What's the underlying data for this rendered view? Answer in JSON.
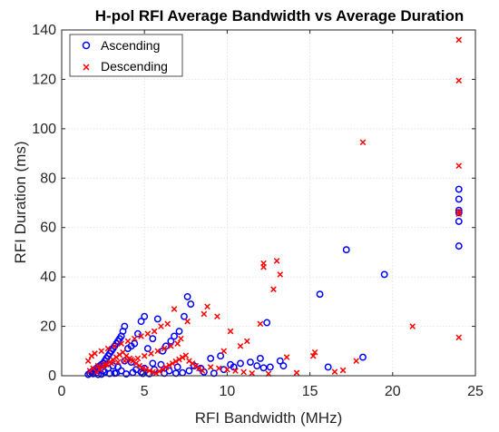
{
  "chart_data": {
    "type": "scatter",
    "title": "H-pol RFI Average Bandwidth vs Average Duration",
    "xlabel": "RFI Bandwidth (MHz)",
    "ylabel": "RFI Duration (ms)",
    "xlim": [
      0,
      25
    ],
    "ylim": [
      0,
      140
    ],
    "xticks": [
      0,
      5,
      10,
      15,
      20,
      25
    ],
    "yticks": [
      0,
      20,
      40,
      60,
      80,
      100,
      120,
      140
    ],
    "grid": true,
    "legend_position": "top-left",
    "series": [
      {
        "name": "Ascending",
        "marker": "o",
        "color": "#0000ff",
        "x": [
          24.0,
          24.0,
          24.0,
          24.0,
          24.0,
          24.0,
          17.2,
          19.5,
          15.6,
          12.4,
          18.2,
          16.1,
          13.2,
          13.4,
          12.6,
          12.2,
          12.0,
          11.4,
          10.8,
          10.2,
          9.6,
          9.0,
          7.6,
          7.8,
          7.4,
          7.1,
          6.8,
          6.6,
          6.3,
          6.1,
          5.8,
          5.5,
          5.2,
          5.0,
          4.8,
          4.6,
          4.4,
          4.2,
          4.0,
          3.8,
          3.7,
          3.6,
          3.5,
          3.4,
          3.3,
          3.2,
          3.1,
          3.0,
          2.9,
          2.8,
          2.7,
          2.6,
          2.5,
          2.4,
          2.3,
          2.2,
          2.1,
          2.0,
          1.9,
          1.8,
          1.7,
          1.6,
          3.8,
          4.2,
          5.5,
          6.0,
          2.5,
          2.8,
          3.1,
          3.4,
          4.5,
          5.0,
          6.5,
          7.0,
          8.0,
          8.4,
          9.8,
          10.4,
          11.8,
          3.2,
          2.6,
          2.2,
          3.6,
          4.8,
          5.6,
          6.9,
          7.7,
          8.6,
          9.2,
          1.9,
          2.1,
          2.4,
          2.9,
          3.3,
          3.9,
          4.3,
          4.9,
          5.3,
          6.2,
          7.3
        ],
        "y": [
          75.5,
          71.5,
          67,
          66,
          62.5,
          52.5,
          51,
          41,
          33,
          21.5,
          7.5,
          3.5,
          6,
          4,
          3.5,
          3.2,
          7,
          5.5,
          5,
          4.5,
          8,
          7,
          32,
          29,
          24,
          18,
          16,
          14,
          12,
          10,
          23,
          15,
          11,
          24,
          22,
          17,
          13,
          12,
          11,
          20,
          18,
          16,
          15,
          14,
          13,
          12,
          11,
          10,
          9,
          8,
          7,
          6,
          5,
          4.5,
          4,
          3.5,
          3,
          2.5,
          2,
          1.5,
          1,
          0.5,
          6,
          5.5,
          5,
          4.5,
          2,
          3,
          4,
          3.5,
          2.5,
          3,
          2,
          3.5,
          4,
          3,
          2.5,
          3.5,
          4,
          1,
          1.5,
          0.5,
          2,
          1.5,
          2.5,
          1,
          2,
          1.5,
          1,
          0.8,
          1.2,
          0.6,
          0.9,
          1.1,
          0.7,
          1.3,
          0.9,
          0.8,
          1.0,
          1.2
        ]
      },
      {
        "name": "Descending",
        "marker": "x",
        "color": "#ff0000",
        "x": [
          24.0,
          24.0,
          24.0,
          24.0,
          24.0,
          18.2,
          21.2,
          24.0,
          12.2,
          12.2,
          13.0,
          13.2,
          12.8,
          12.0,
          13.6,
          15.3,
          15.2,
          17.8,
          8.8,
          8.6,
          7.6,
          6.8,
          6.4,
          6.0,
          5.6,
          5.2,
          4.8,
          4.4,
          4.0,
          3.6,
          3.2,
          2.8,
          2.4,
          2.0,
          1.8,
          1.6,
          9.4,
          10.2,
          11.2,
          10.8,
          9.8,
          7.2,
          7.0,
          6.6,
          6.2,
          5.8,
          5.4,
          5.0,
          4.6,
          4.2,
          3.8,
          3.4,
          3.0,
          2.6,
          2.2,
          1.9,
          1.7,
          2.1,
          2.3,
          2.5,
          2.7,
          2.9,
          3.1,
          3.3,
          3.5,
          3.7,
          3.9,
          4.1,
          4.3,
          4.5,
          4.7,
          4.9,
          5.1,
          5.3,
          5.5,
          5.7,
          5.9,
          6.1,
          6.3,
          6.5,
          6.7,
          6.9,
          7.1,
          7.3,
          7.5,
          7.7,
          7.9,
          8.1,
          8.3,
          8.5,
          9.0,
          9.5,
          10.0,
          10.5,
          11.0,
          11.5,
          12.5,
          14.2,
          16.5,
          17.0
        ],
        "y": [
          136,
          119.5,
          85,
          66.5,
          65.5,
          94.5,
          20,
          15.5,
          45.5,
          44,
          46.5,
          41,
          35,
          21,
          7.5,
          9.5,
          8,
          6,
          28,
          25,
          22,
          27,
          21,
          20,
          18,
          17,
          16,
          15,
          14,
          13,
          12,
          11,
          10,
          9,
          8,
          6,
          24,
          18,
          14,
          12,
          10,
          15,
          13,
          12,
          11,
          10,
          9,
          8,
          7,
          6.5,
          6,
          5.5,
          5,
          4.5,
          4,
          3,
          2,
          1.5,
          2.5,
          3.5,
          4.5,
          5.5,
          6.5,
          7.5,
          8.5,
          9.5,
          8,
          7,
          6,
          5,
          4,
          3,
          2.5,
          2,
          1.5,
          1,
          1.8,
          2.6,
          3.4,
          4.2,
          5,
          5.8,
          6.6,
          7.4,
          8.2,
          6,
          5,
          4,
          3,
          2,
          3.5,
          3,
          2.5,
          2,
          1.5,
          1,
          0.8,
          1.2,
          1.6,
          2.2
        ]
      }
    ]
  }
}
